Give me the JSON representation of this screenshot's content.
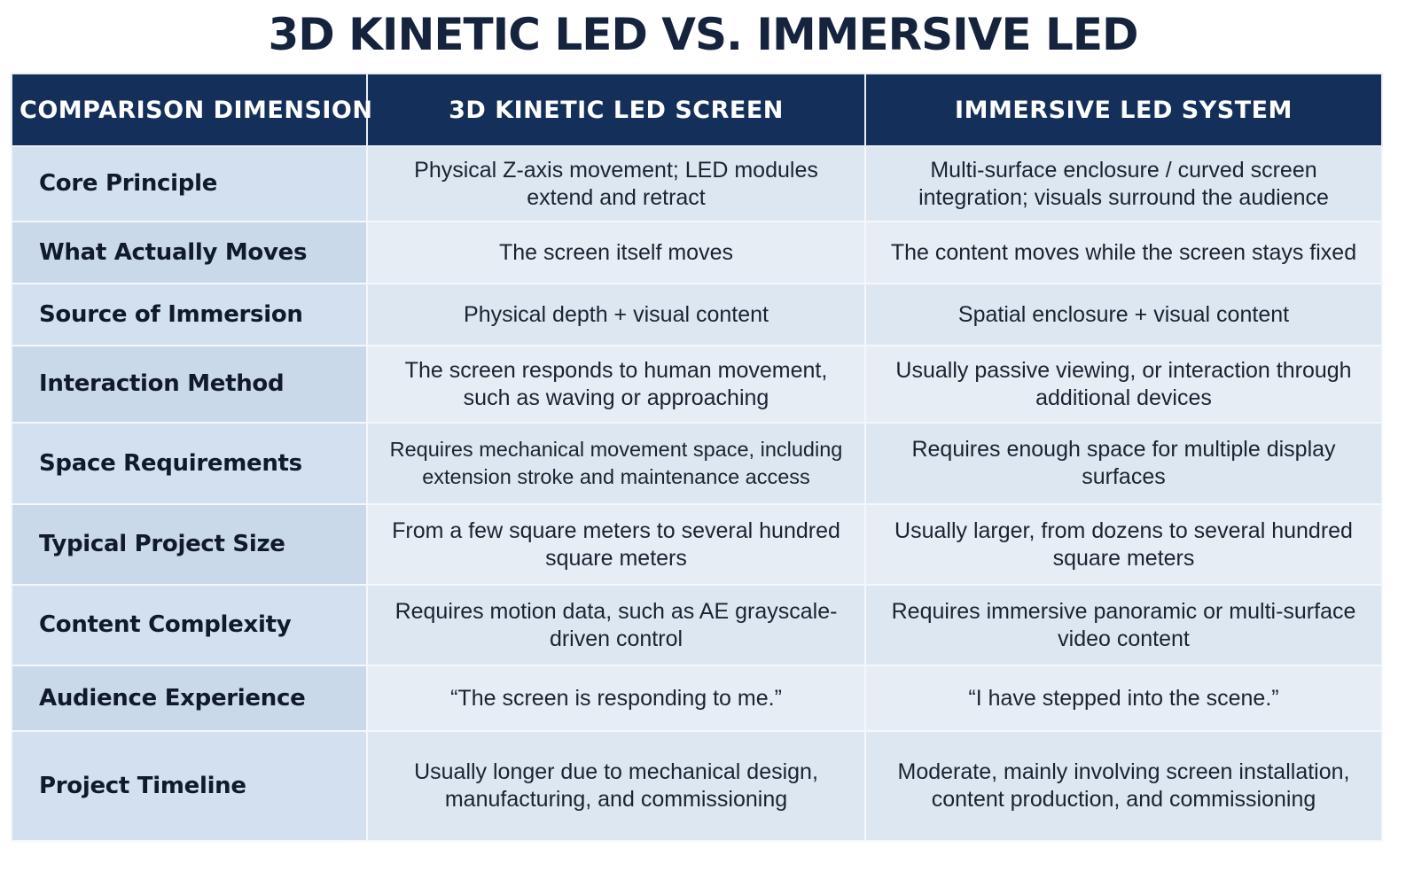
{
  "title": "3D KINETIC LED VS. IMMERSIVE LED",
  "table": {
    "headers": [
      "COMPARISON DIMENSION",
      "3D KINETIC LED SCREEN",
      "IMMERSIVE LED SYSTEM"
    ],
    "rows": [
      {
        "dimension": "Core Principle",
        "kinetic": "Physical Z-axis movement; LED modules extend and retract",
        "immersive": "Multi-surface enclosure / curved screen integration; visuals surround the audience"
      },
      {
        "dimension": "What Actually Moves",
        "kinetic": "The screen itself moves",
        "immersive": "The content moves while the screen stays fixed"
      },
      {
        "dimension": "Source of Immersion",
        "kinetic": "Physical depth + visual content",
        "immersive": "Spatial enclosure + visual content"
      },
      {
        "dimension": "Interaction Method",
        "kinetic": "The screen responds to human movement, such as waving or approaching",
        "immersive": "Usually passive viewing, or interaction through additional devices"
      },
      {
        "dimension": "Space Requirements",
        "kinetic": "Requires mechanical movement space, including extension stroke and maintenance access",
        "immersive": "Requires enough space for multiple display surfaces"
      },
      {
        "dimension": "Typical Project Size",
        "kinetic": "From a few square meters to several hundred square meters",
        "immersive": "Usually larger, from dozens to several hundred square meters"
      },
      {
        "dimension": "Content Complexity",
        "kinetic": "Requires motion data, such as AE grayscale-driven control",
        "immersive": "Requires immersive panoramic or multi-surface video content"
      },
      {
        "dimension": "Audience Experience",
        "kinetic": "“The screen is responding to me.”",
        "immersive": "“I have stepped into the scene.”"
      },
      {
        "dimension": "Project Timeline",
        "kinetic": "Usually longer due to mechanical design, manufacturing, and commissioning",
        "immersive": "Moderate, mainly involving screen installation, content production, and commissioning"
      }
    ]
  },
  "colors": {
    "header_bg": "#14305a",
    "title_text": "#16233d",
    "row_light": "#dde7f2",
    "row_dark": "#e7edf5"
  }
}
